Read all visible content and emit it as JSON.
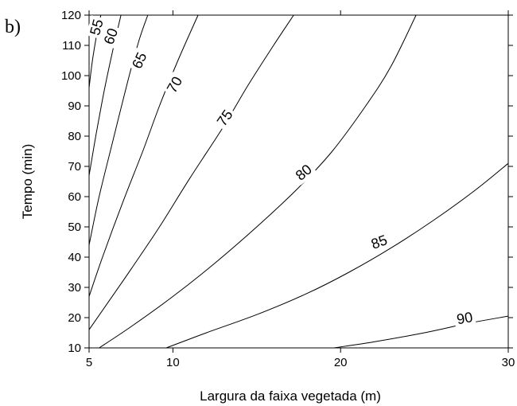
{
  "panel_label": "b)",
  "chart_data": {
    "type": "contour",
    "title": "",
    "xlabel": "Largura da faixa vegetada (m)",
    "ylabel": "Tempo (min)",
    "xlim": [
      5,
      30
    ],
    "ylim": [
      10,
      120
    ],
    "x_ticks": [
      5,
      10,
      20,
      30
    ],
    "y_ticks": [
      10,
      20,
      30,
      40,
      50,
      60,
      70,
      80,
      90,
      100,
      110,
      120
    ],
    "grid": false,
    "contours": [
      {
        "level": "55",
        "points": [
          [
            5.0,
            96
          ],
          [
            5.2,
            105
          ],
          [
            5.5,
            115
          ],
          [
            5.7,
            120
          ]
        ],
        "label_at": [
          5.45,
          116,
          -75
        ]
      },
      {
        "level": "60",
        "points": [
          [
            5.0,
            67
          ],
          [
            5.4,
            80
          ],
          [
            5.9,
            95
          ],
          [
            6.4,
            108
          ],
          [
            6.9,
            120
          ]
        ],
        "label_at": [
          6.3,
          113,
          -70
        ]
      },
      {
        "level": "65",
        "points": [
          [
            5.0,
            44
          ],
          [
            5.6,
            60
          ],
          [
            6.4,
            78
          ],
          [
            7.3,
            98
          ],
          [
            8.0,
            112
          ],
          [
            8.5,
            120
          ]
        ],
        "label_at": [
          8.0,
          105,
          -65
        ]
      },
      {
        "level": "70",
        "points": [
          [
            5.0,
            27
          ],
          [
            5.8,
            40
          ],
          [
            7.0,
            58
          ],
          [
            8.2,
            75
          ],
          [
            9.2,
            90
          ],
          [
            10.3,
            105
          ],
          [
            11.5,
            120
          ]
        ],
        "label_at": [
          10.1,
          97,
          -60
        ]
      },
      {
        "level": "75",
        "points": [
          [
            5.0,
            16
          ],
          [
            6.0,
            24
          ],
          [
            7.5,
            36
          ],
          [
            9.2,
            50
          ],
          [
            11.0,
            66
          ],
          [
            13.0,
            83
          ],
          [
            14.5,
            97
          ],
          [
            16.0,
            110
          ],
          [
            17.2,
            120
          ]
        ],
        "label_at": [
          13.1,
          86,
          -55
        ]
      },
      {
        "level": "80",
        "points": [
          [
            5.6,
            10
          ],
          [
            7.5,
            17
          ],
          [
            10.0,
            27
          ],
          [
            12.5,
            38
          ],
          [
            15.0,
            50
          ],
          [
            17.5,
            63
          ],
          [
            19.5,
            75
          ],
          [
            21.5,
            90
          ],
          [
            23.0,
            103
          ],
          [
            24.5,
            120
          ]
        ],
        "label_at": [
          17.8,
          68,
          -40
        ]
      },
      {
        "level": "85",
        "points": [
          [
            9.6,
            10
          ],
          [
            12.0,
            15
          ],
          [
            15.0,
            21
          ],
          [
            18.0,
            28
          ],
          [
            20.5,
            35
          ],
          [
            23.0,
            43
          ],
          [
            25.5,
            52
          ],
          [
            28.0,
            62
          ],
          [
            30.0,
            71
          ]
        ],
        "label_at": [
          22.3,
          45,
          -20
        ]
      },
      {
        "level": "90",
        "points": [
          [
            19.6,
            10
          ],
          [
            22.0,
            12
          ],
          [
            25.0,
            15
          ],
          [
            27.5,
            18
          ],
          [
            30.0,
            20.5
          ]
        ],
        "label_at": [
          27.4,
          19.8,
          -10
        ]
      }
    ]
  }
}
